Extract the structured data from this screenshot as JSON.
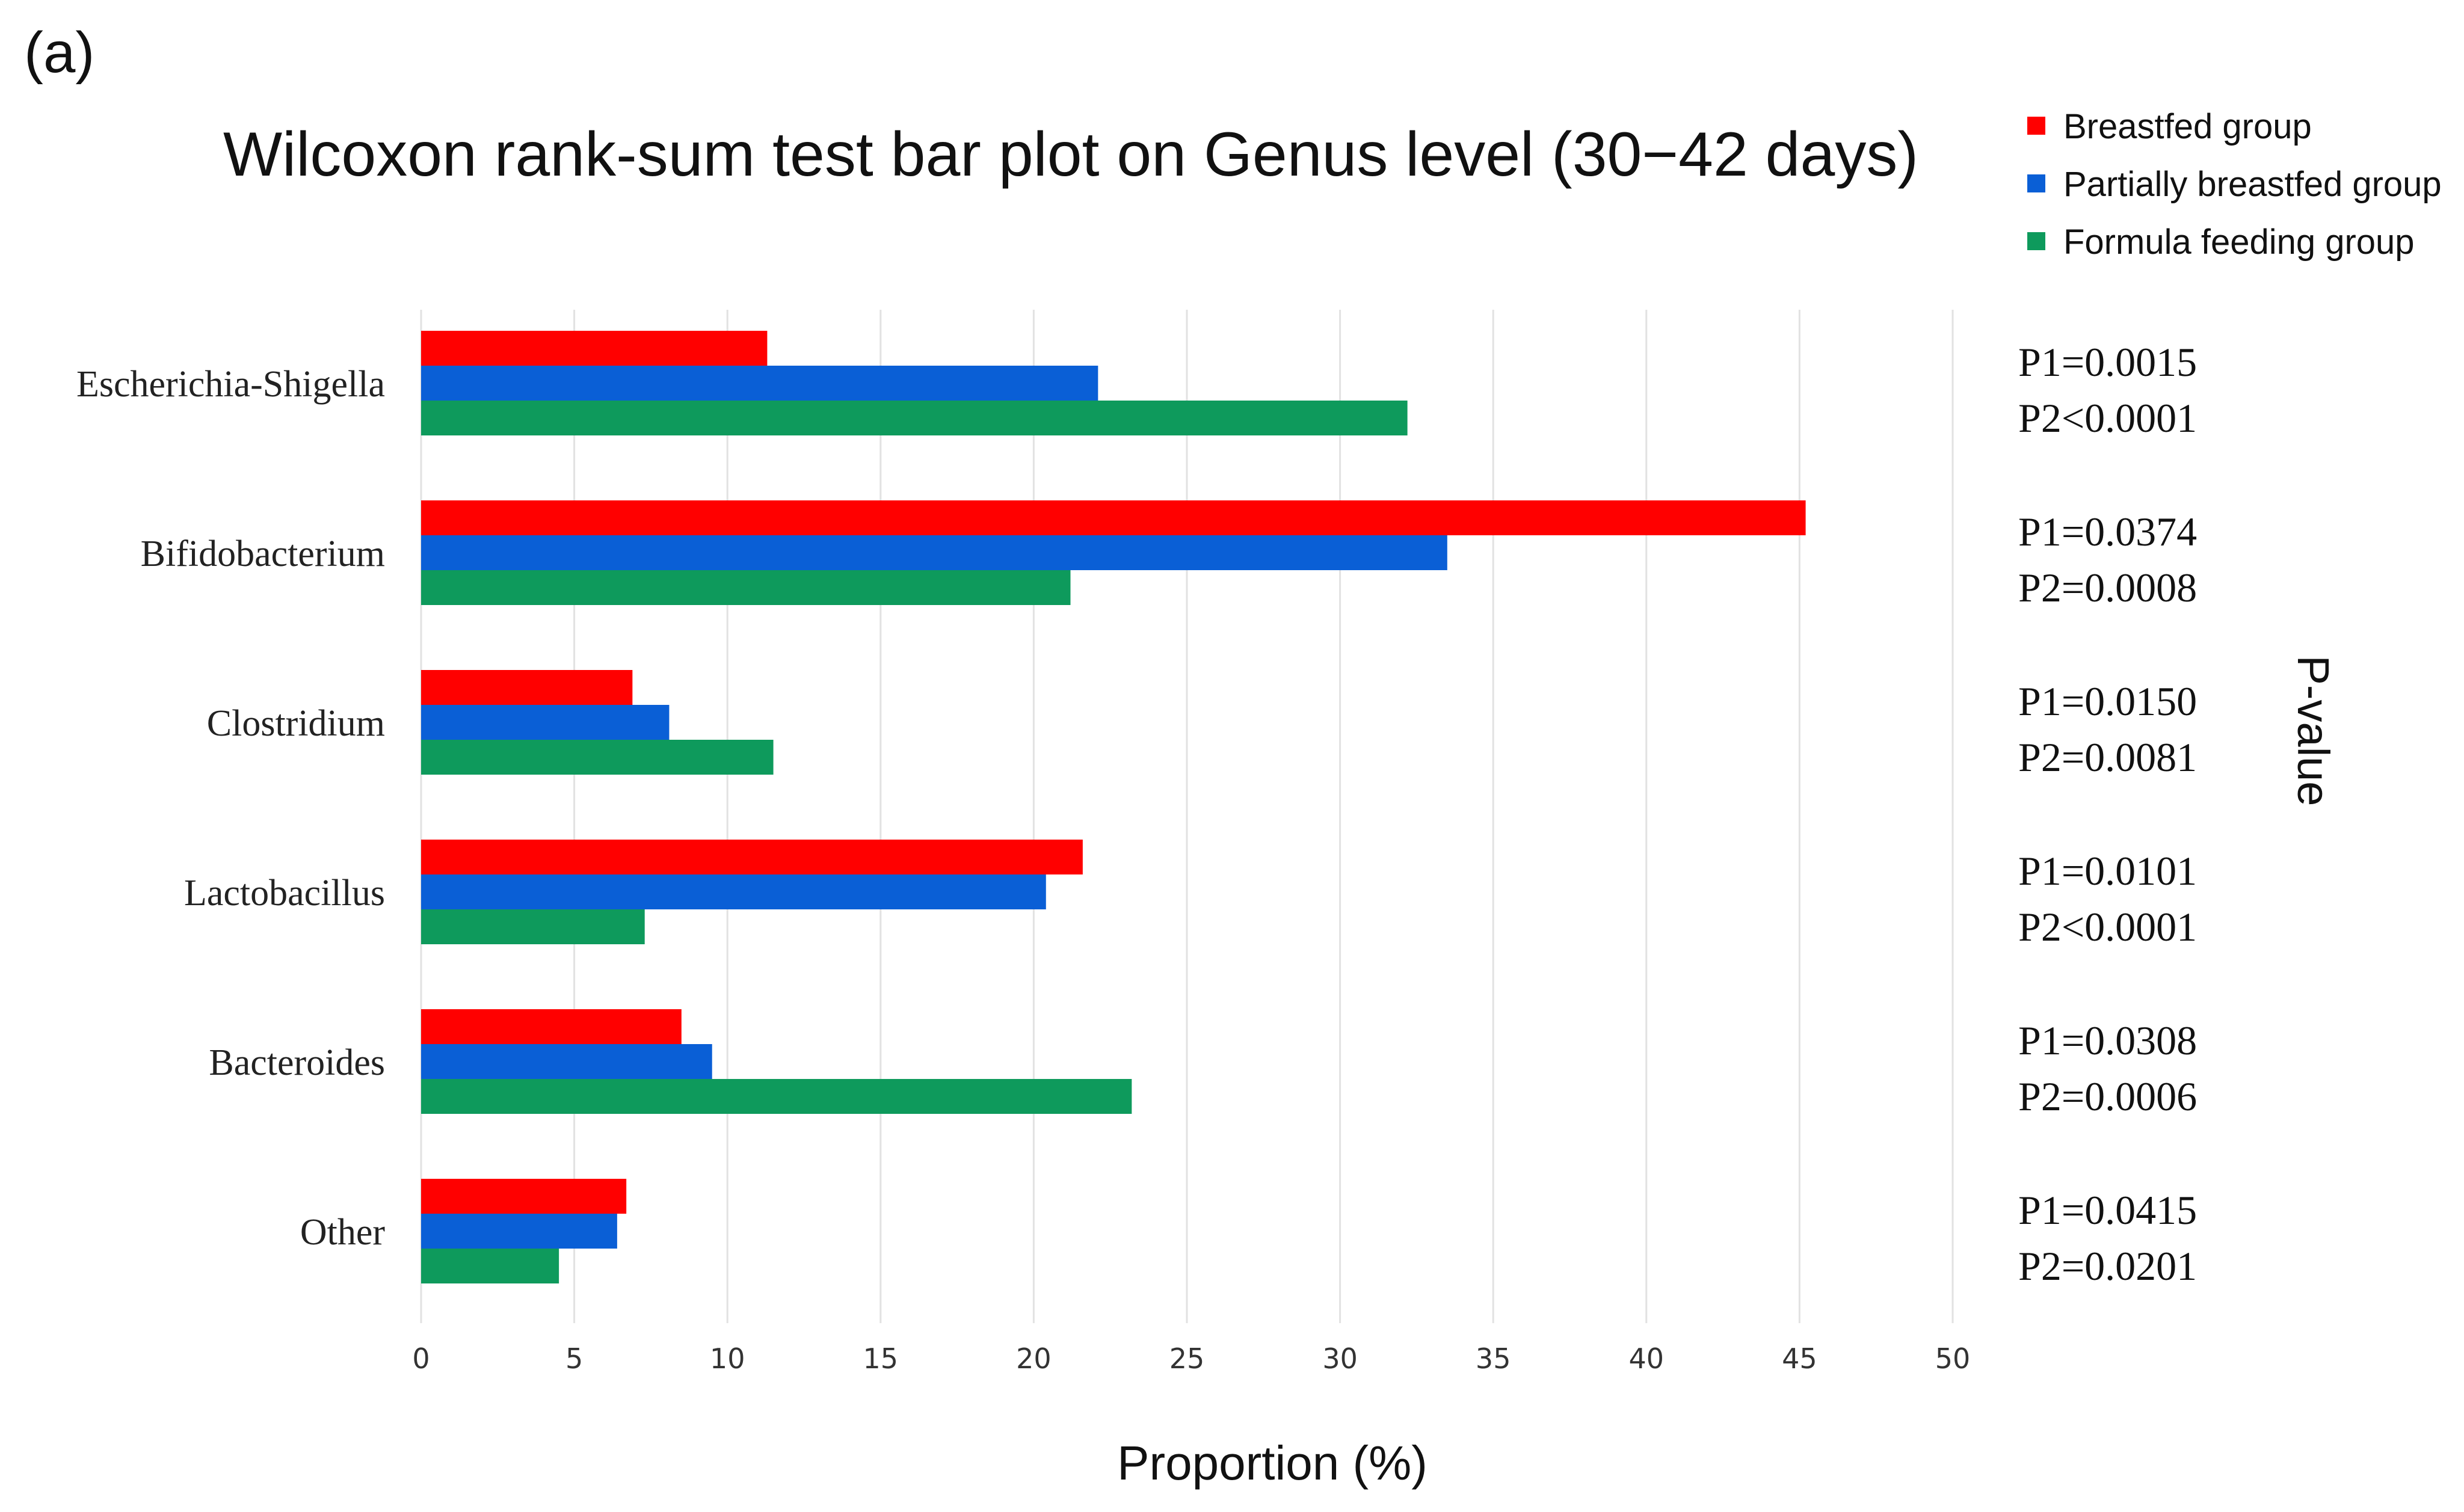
{
  "panel_label": "(a)",
  "chart_data": {
    "type": "bar",
    "orientation": "horizontal",
    "title": "Wilcoxon rank-sum test bar plot on Genus level (30−42 days)",
    "xlabel": "Proportion (%)",
    "right_axis_label": "P-value",
    "xlim": [
      0,
      50
    ],
    "xticks": [
      0,
      5,
      10,
      15,
      20,
      25,
      30,
      35,
      40,
      45,
      50
    ],
    "grid": true,
    "legend_position": "top-right",
    "categories": [
      "Escherichia-Shigella",
      "Bifidobacterium",
      "Clostridium",
      "Lactobacillus",
      "Bacteroides",
      "Other"
    ],
    "series": [
      {
        "name": "Breastfed group",
        "color": "#ff0000",
        "values": [
          11.3,
          45.2,
          6.9,
          21.6,
          8.5,
          6.7
        ]
      },
      {
        "name": "Partially breastfed group",
        "color": "#0a5fd6",
        "values": [
          22.1,
          33.5,
          8.1,
          20.4,
          9.5,
          6.4
        ]
      },
      {
        "name": "Formula feeding group",
        "color": "#0e9a5c",
        "values": [
          32.2,
          21.2,
          11.5,
          7.3,
          23.2,
          4.5
        ]
      }
    ],
    "p_values": [
      {
        "p1": "P1=0.0015",
        "p2": "P2<0.0001"
      },
      {
        "p1": "P1=0.0374",
        "p2": "P2=0.0008"
      },
      {
        "p1": "P1=0.0150",
        "p2": "P2=0.0081"
      },
      {
        "p1": "P1=0.0101",
        "p2": "P2<0.0001"
      },
      {
        "p1": "P1=0.0308",
        "p2": "P2=0.0006"
      },
      {
        "p1": "P1=0.0415",
        "p2": "P2=0.0201"
      }
    ]
  }
}
